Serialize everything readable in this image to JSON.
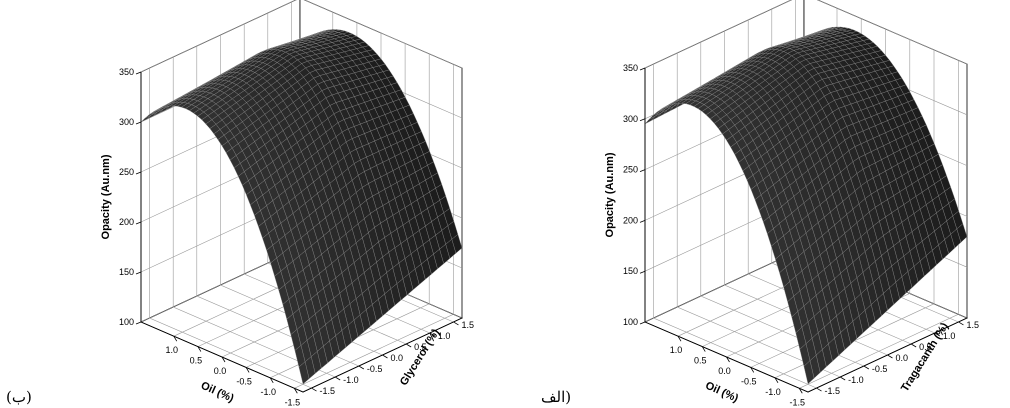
{
  "chart_data": [
    {
      "type": "surface",
      "panel_label": "(ب)",
      "x_axis": {
        "label": "Oil (%)",
        "ticks": [
          "1.0",
          "0.5",
          "0.0",
          "-0.5",
          "-1.0",
          "-1.5"
        ],
        "range": [
          -1.68,
          1.68
        ]
      },
      "y_axis": {
        "label": "Glycerol (%)",
        "ticks": [
          "1.5",
          "1.0",
          "0.5",
          "0.0",
          "-0.5",
          "-1.0",
          "-1.5"
        ],
        "range": [
          -1.68,
          1.68
        ]
      },
      "z_axis": {
        "label": "Opacity (Au.nm)",
        "ticks": [
          "100",
          "150",
          "200",
          "250",
          "300",
          "350"
        ],
        "range": [
          100,
          350
        ]
      },
      "surface_corners": [
        {
          "oil": 1.68,
          "second_factor": 1.68,
          "opacity": 303
        },
        {
          "oil": -1.68,
          "second_factor": 1.68,
          "opacity": 170
        },
        {
          "oil": 1.68,
          "second_factor": -1.68,
          "opacity": 300
        },
        {
          "oil": -1.68,
          "second_factor": -1.68,
          "opacity": 108
        }
      ],
      "peak": {
        "oil": 0.5,
        "second_factor": 0.3,
        "opacity": 350
      },
      "grid": true,
      "surface_color": "#1f1f1f"
    },
    {
      "type": "surface",
      "panel_label": "الف)",
      "x_axis": {
        "label": "Oil (%)",
        "ticks": [
          "1.0",
          "0.5",
          "0.0",
          "-0.5",
          "-1.0",
          "-1.5"
        ],
        "range": [
          -1.68,
          1.68
        ]
      },
      "y_axis": {
        "label": "Tragacanth (%)",
        "ticks": [
          "1.5",
          "1.0",
          "0.5",
          "0.0",
          "-0.5",
          "-1.0",
          "-1.5"
        ],
        "range": [
          -1.68,
          1.68
        ]
      },
      "z_axis": {
        "label": "Opacity (Au.nm)",
        "ticks": [
          "100",
          "150",
          "200",
          "250",
          "300",
          "350"
        ],
        "range": [
          100,
          350
        ]
      },
      "surface_corners": [
        {
          "oil": 1.68,
          "second_factor": 1.68,
          "opacity": 303
        },
        {
          "oil": -1.68,
          "second_factor": 1.68,
          "opacity": 180
        },
        {
          "oil": 1.68,
          "second_factor": -1.68,
          "opacity": 295
        },
        {
          "oil": -1.68,
          "second_factor": -1.68,
          "opacity": 108
        }
      ],
      "peak": {
        "oil": 0.5,
        "second_factor": 0.2,
        "opacity": 350
      },
      "grid": true,
      "surface_color": "#1f1f1f"
    }
  ]
}
